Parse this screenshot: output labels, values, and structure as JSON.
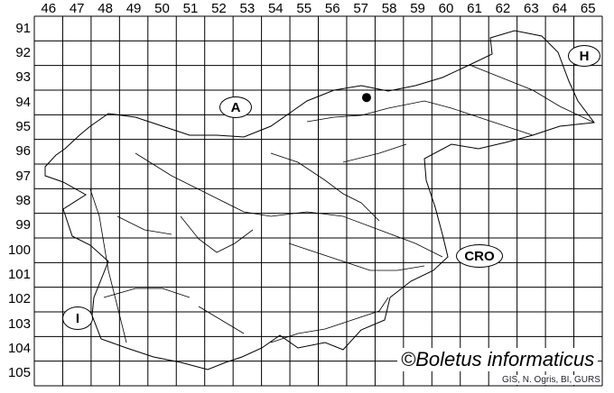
{
  "map": {
    "columns": [
      "46",
      "47",
      "48",
      "49",
      "50",
      "51",
      "52",
      "53",
      "54",
      "55",
      "56",
      "57",
      "58",
      "59",
      "60",
      "61",
      "62",
      "63",
      "64",
      "65"
    ],
    "rows": [
      "91",
      "92",
      "93",
      "94",
      "95",
      "96",
      "97",
      "98",
      "99",
      "100",
      "101",
      "102",
      "103",
      "104",
      "105"
    ],
    "country_labels": {
      "austria": "A",
      "hungary": "H",
      "croatia": "CRO",
      "italy": "I"
    },
    "occurrence_points": [
      {
        "column": "57",
        "row": "94"
      }
    ],
    "credit": "©Boletus informaticus",
    "source": "GIS, N. Ogris, BI, GURS",
    "colors": {
      "lines": "#000000",
      "background": "#ffffff"
    }
  }
}
